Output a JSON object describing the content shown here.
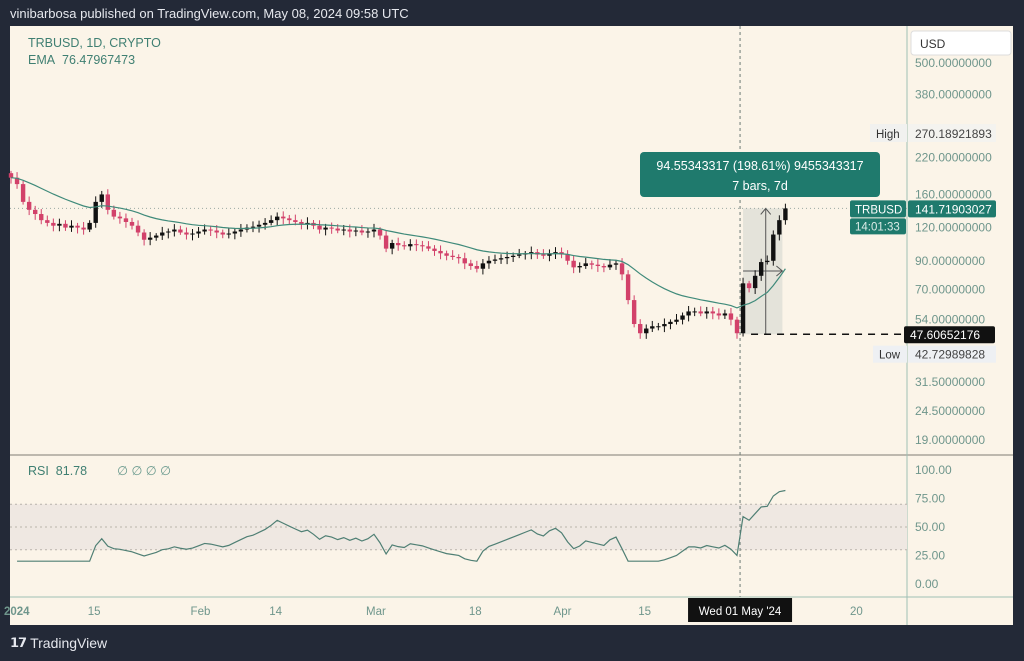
{
  "header": {
    "published": "vinibarbosa published on TradingView.com, May 08, 2024 09:58 UTC"
  },
  "legend": {
    "symbol": "TRBUSD, 1D, CRYPTO",
    "ema_label": "EMA",
    "ema_value": "76.47967473",
    "rsi_label": "RSI",
    "rsi_value": "81.78",
    "rsi_extra": "∅ ∅ ∅ ∅"
  },
  "footer": {
    "brand": "TradingView",
    "logo": "17"
  },
  "colors": {
    "up": "#111111",
    "down": "#d2416a",
    "ema": "#3f8a7a",
    "teal": "#1f7a6d",
    "bg": "#fbf4e8"
  },
  "chart_data": {
    "type": "candlestick",
    "title": "TRBUSD, 1D, CRYPTO",
    "currency": "USD",
    "start_date": "2024-01-01",
    "closes": [
      185,
      175,
      150,
      140,
      135,
      128,
      125,
      122,
      124,
      120,
      122,
      120,
      118,
      125,
      150,
      160,
      140,
      132,
      130,
      126,
      122,
      115,
      108,
      110,
      112,
      115,
      116,
      118,
      115,
      113,
      114,
      116,
      118,
      117,
      115,
      113,
      114,
      116,
      118,
      120,
      121,
      123,
      125,
      128,
      132,
      130,
      128,
      126,
      124,
      125,
      122,
      118,
      120,
      119,
      117,
      118,
      116,
      117,
      115,
      116,
      118,
      112,
      100,
      105,
      103,
      102,
      104,
      103,
      102,
      100,
      98,
      96,
      94,
      93,
      92,
      88,
      86,
      84,
      88,
      90,
      91,
      92,
      93,
      94,
      95,
      96,
      97,
      95,
      94,
      96,
      97,
      95,
      90,
      85,
      86,
      88,
      87,
      86,
      85,
      87,
      88,
      80,
      64,
      52,
      48,
      50,
      51,
      51,
      52,
      53,
      54,
      56,
      58,
      58,
      57,
      58,
      57,
      56,
      57,
      54,
      48,
      74,
      71,
      79,
      89,
      90,
      113,
      128,
      141.7
    ],
    "y_scale": "log",
    "price_ticks": [
      "500.00000000",
      "380.00000000",
      "270.18921893",
      "220.00000000",
      "160.00000000",
      "120.00000000",
      "90.00000000",
      "70.00000000",
      "54.00000000",
      "31.50000000",
      "24.50000000",
      "19.00000000"
    ],
    "price_tick_values": [
      500,
      380,
      270.19,
      220,
      160,
      120,
      90,
      70,
      54,
      31.5,
      24.5,
      19
    ],
    "high": {
      "label": "High",
      "value": "270.18921893",
      "num": 270.19
    },
    "low": {
      "label": "Low",
      "value": "42.72989828",
      "num": 42.73
    },
    "last": {
      "label": "TRBUSD",
      "value": "141.71903027",
      "countdown": "14:01:33",
      "num": 141.72
    },
    "crosshair_price": {
      "value": "47.60652176",
      "num": 47.6065
    },
    "measure": {
      "line1": "94.55343317 (198.61%) 9455343317",
      "line2": "7 bars, 7d",
      "from_day": 121,
      "to_day": 128
    },
    "x_ticks": [
      {
        "label": "2024",
        "day": 0
      },
      {
        "label": "15",
        "day": 14
      },
      {
        "label": "Feb",
        "day": 31
      },
      {
        "label": "14",
        "day": 44
      },
      {
        "label": "Mar",
        "day": 60
      },
      {
        "label": "18",
        "day": 77
      },
      {
        "label": "Apr",
        "day": 91
      },
      {
        "label": "15",
        "day": 105
      },
      {
        "label": "20",
        "day": 140
      }
    ],
    "crosshair_date": {
      "label": "Wed 01 May '24",
      "day": 121
    },
    "rsi_ticks": [
      "100.00",
      "75.00",
      "50.00",
      "25.00",
      "0.00"
    ],
    "rsi_tick_values": [
      100,
      75,
      50,
      25,
      0
    ],
    "rsi_bands": [
      30,
      70
    ]
  }
}
